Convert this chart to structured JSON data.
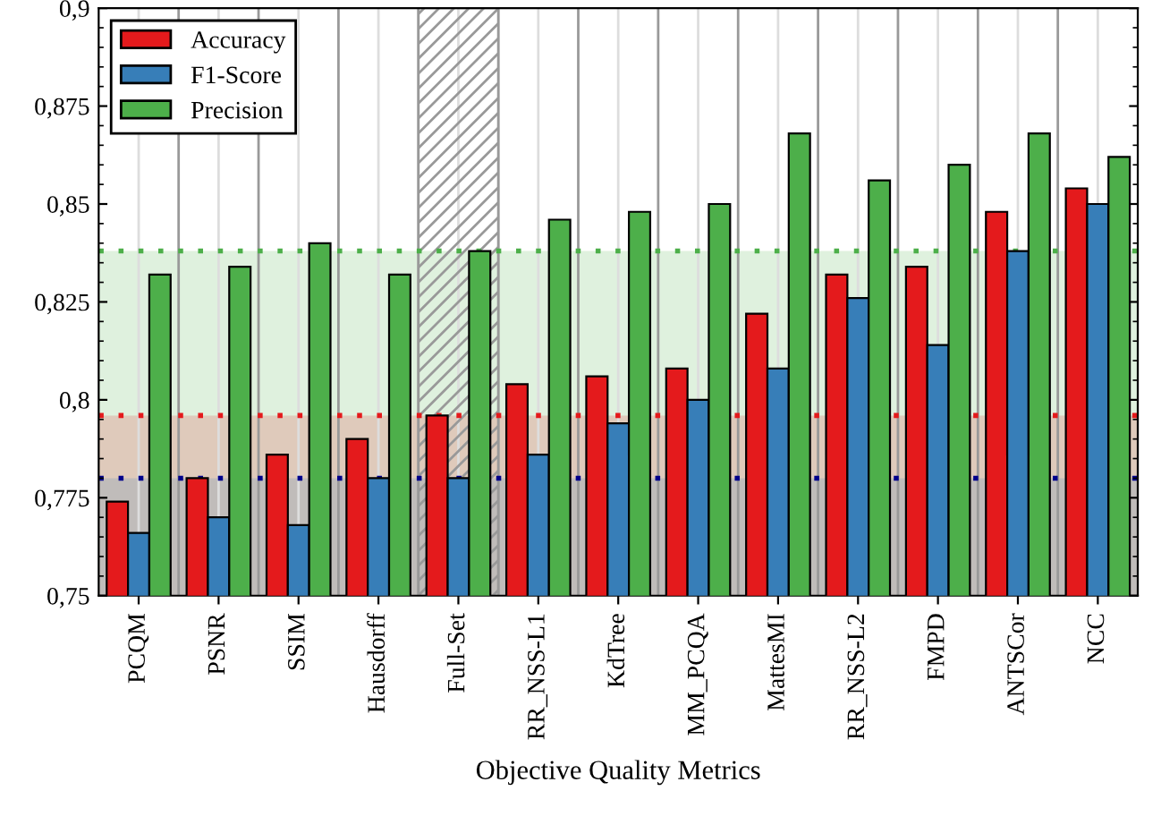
{
  "chart_data": {
    "type": "bar",
    "xlabel": "Objective Quality Metrics",
    "categories": [
      "PCQM",
      "PSNR",
      "SSIM",
      "Hausdorff",
      "Full-Set",
      "RR_NSS-L1",
      "KdTree",
      "MM_PCQA",
      "MattesMI",
      "RR_NSS-L2",
      "FMPD",
      "ANTSCor",
      "NCC"
    ],
    "series": [
      {
        "name": "Accuracy",
        "color": "#e41a1c",
        "values": [
          0.774,
          0.78,
          0.786,
          0.79,
          0.796,
          0.804,
          0.806,
          0.808,
          0.822,
          0.832,
          0.834,
          0.848,
          0.854
        ]
      },
      {
        "name": "F1-Score",
        "color": "#377eb8",
        "values": [
          0.766,
          0.77,
          0.768,
          0.78,
          0.78,
          0.786,
          0.794,
          0.8,
          0.808,
          0.826,
          0.814,
          0.838,
          0.85
        ]
      },
      {
        "name": "Precision",
        "color": "#4daf4a",
        "values": [
          0.832,
          0.834,
          0.84,
          0.832,
          0.838,
          0.846,
          0.848,
          0.85,
          0.868,
          0.856,
          0.86,
          0.868,
          0.862
        ]
      }
    ],
    "ylim": [
      0.75,
      0.9
    ],
    "yticks": [
      {
        "value": 0.75,
        "label": "0,75"
      },
      {
        "value": 0.775,
        "label": "0,775"
      },
      {
        "value": 0.8,
        "label": "0,8"
      },
      {
        "value": 0.825,
        "label": "0,825"
      },
      {
        "value": 0.85,
        "label": "0,85"
      },
      {
        "value": 0.875,
        "label": "0,875"
      },
      {
        "value": 0.9,
        "label": "0,9"
      }
    ],
    "ref_lines": [
      {
        "axis": "y",
        "value": 0.838,
        "color": "#4daf4a",
        "line_style": "dotted"
      },
      {
        "axis": "y",
        "value": 0.796,
        "color": "#e41a1c",
        "line_style": "dotted"
      },
      {
        "axis": "y",
        "value": 0.78,
        "color": "#00008b",
        "line_style": "dotted"
      }
    ],
    "bands": [
      {
        "axis": "y",
        "from": 0.75,
        "to": 0.838,
        "color": "#4daf4a"
      },
      {
        "axis": "y",
        "from": 0.75,
        "to": 0.796,
        "color": "#e41a1c"
      },
      {
        "axis": "y",
        "from": 0.75,
        "to": 0.78,
        "color": "#377eb8"
      },
      {
        "axis": "x",
        "from": "Full-Set",
        "to": "Full-Set",
        "color": "#999999"
      }
    ],
    "grid": "x",
    "legend": "top left"
  }
}
